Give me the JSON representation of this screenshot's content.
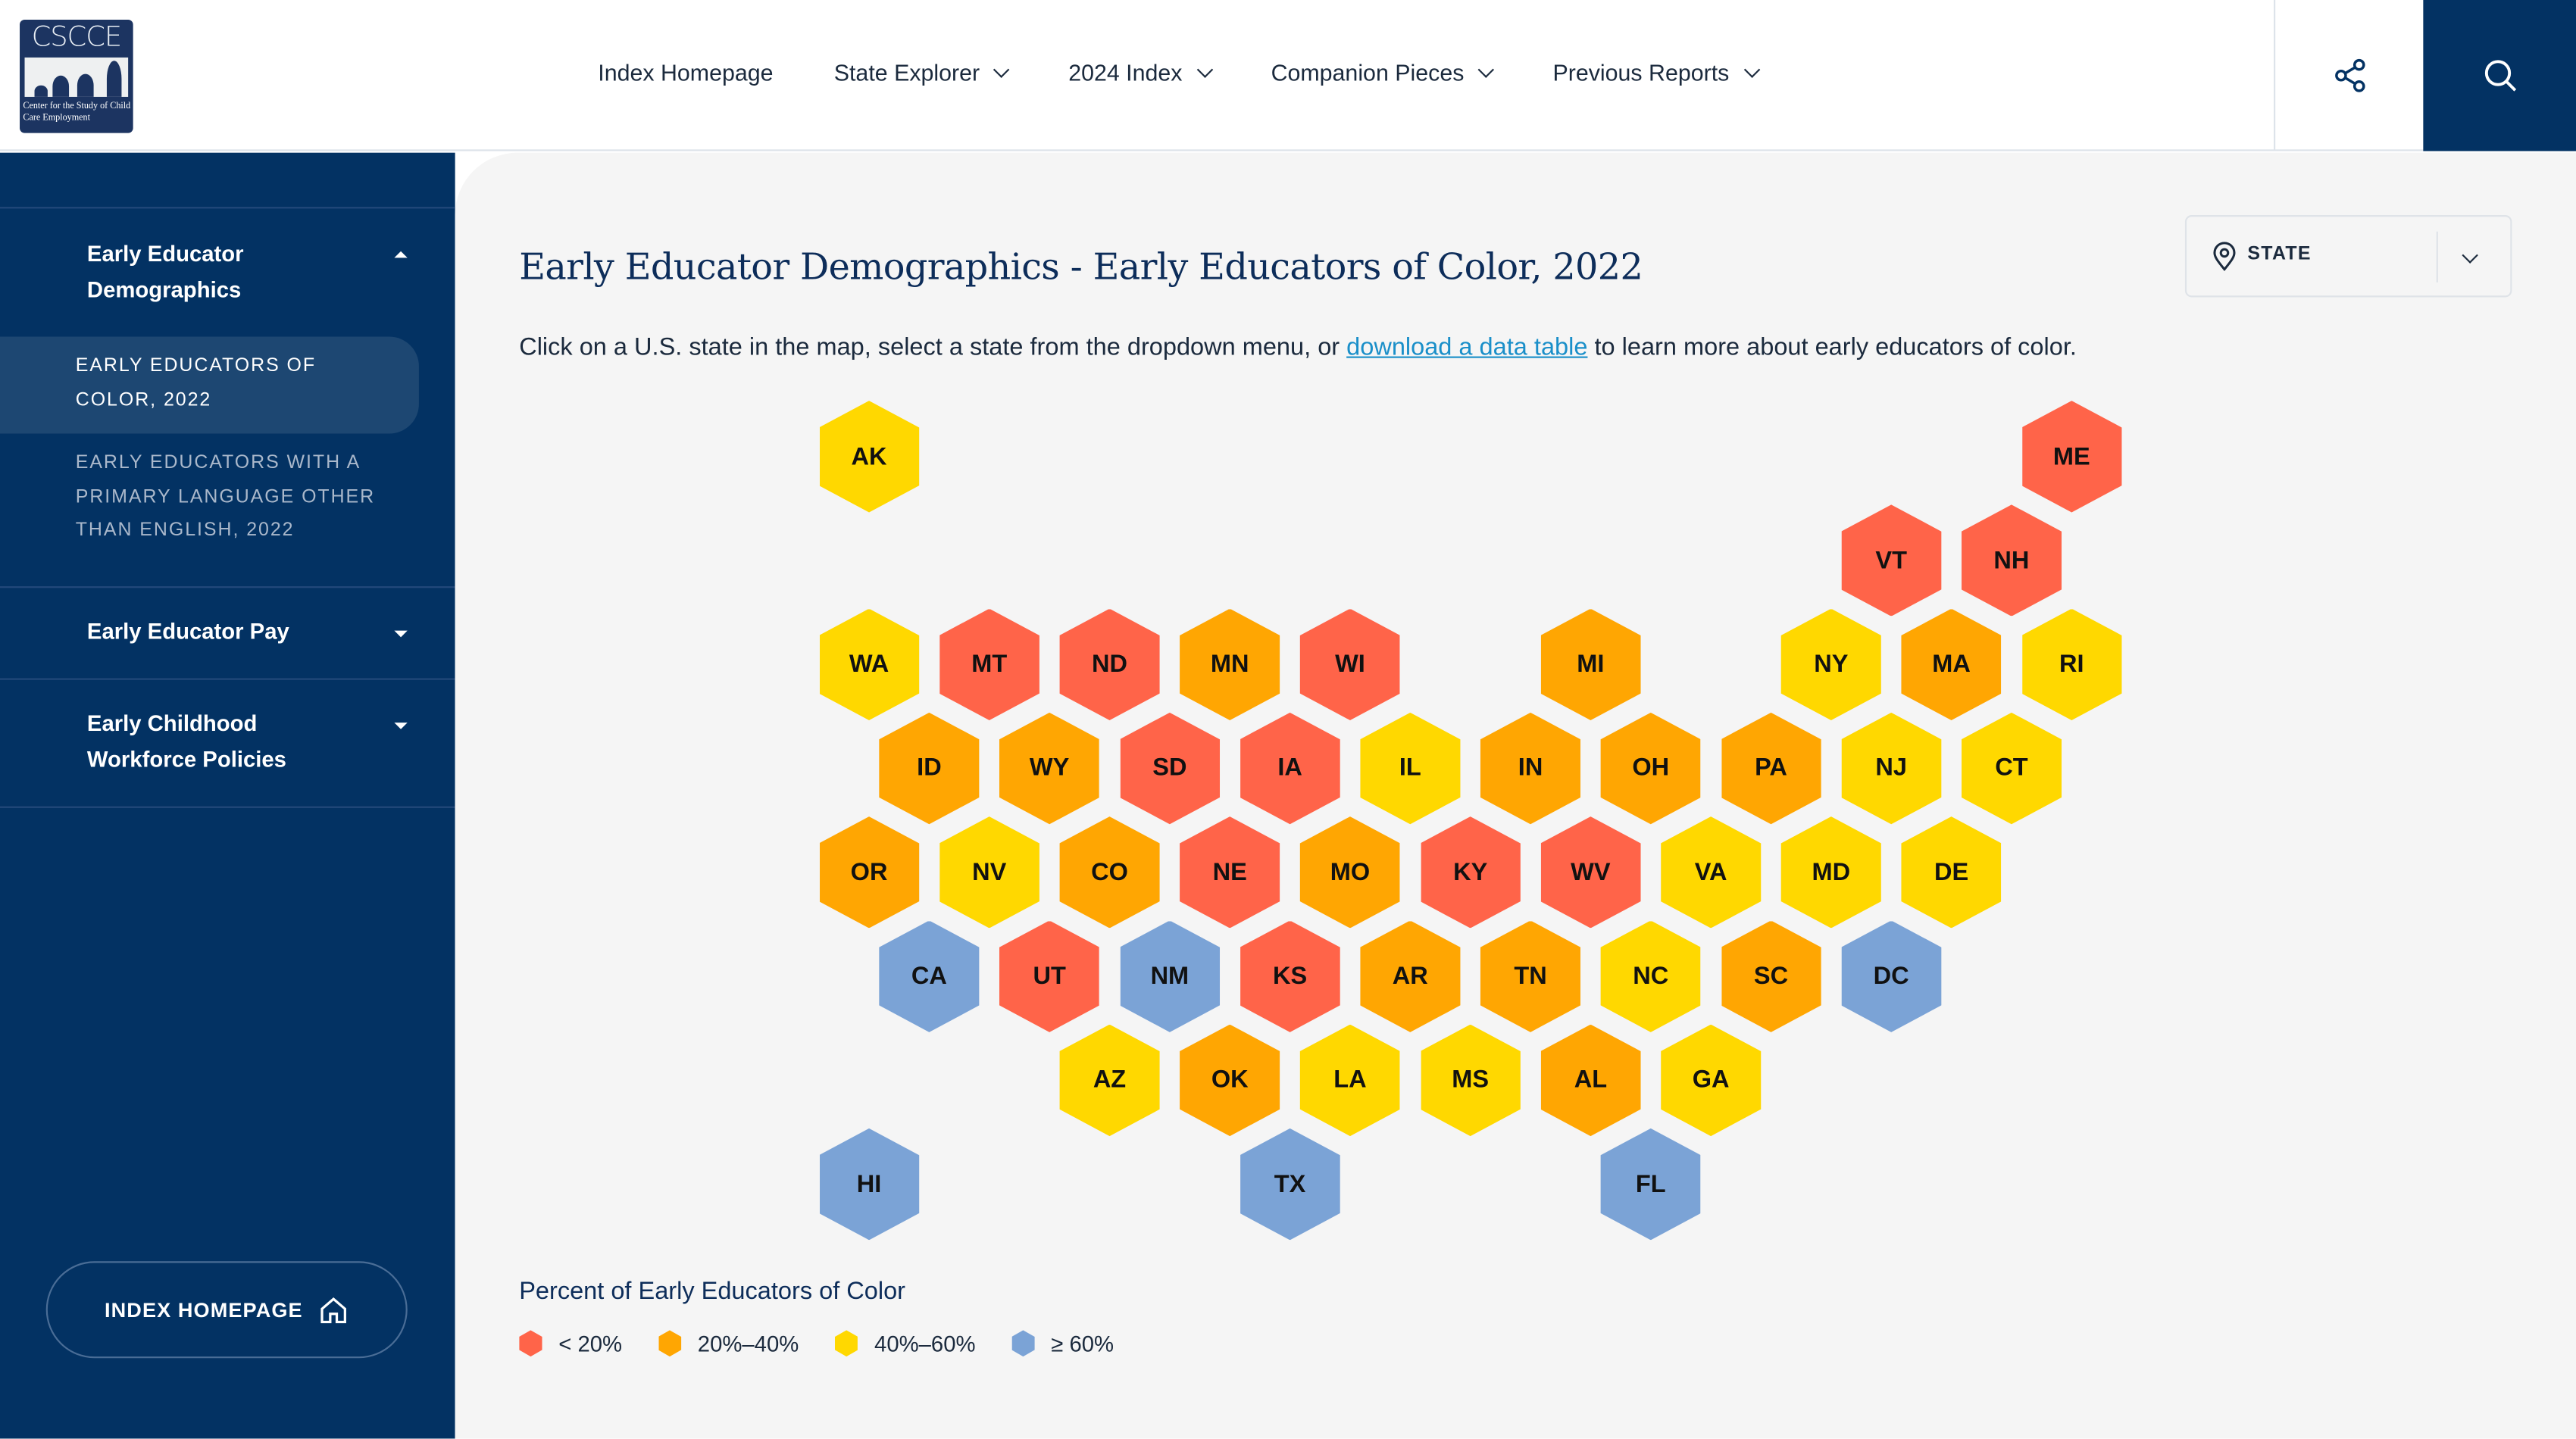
{
  "logo": {
    "abbr": "CSCCE",
    "name": "Center for the Study of Child Care Employment"
  },
  "nav": [
    {
      "label": "Index Homepage",
      "dropdown": false
    },
    {
      "label": "State Explorer",
      "dropdown": true
    },
    {
      "label": "2024 Index",
      "dropdown": true
    },
    {
      "label": "Companion Pieces",
      "dropdown": true
    },
    {
      "label": "Previous Reports",
      "dropdown": true
    }
  ],
  "sidebar": {
    "sections": [
      {
        "label": "Early Educator Demographics",
        "expanded": true
      },
      {
        "label": "Early Educator Pay",
        "expanded": false
      },
      {
        "label": "Early Childhood Workforce Policies",
        "expanded": false
      }
    ],
    "subitems": [
      {
        "label": "EARLY EDUCATORS OF COLOR, 2022",
        "active": true
      },
      {
        "label": "EARLY EDUCATORS WITH A PRIMARY LANGUAGE OTHER THAN ENGLISH, 2022",
        "active": false
      }
    ],
    "index_button": "INDEX HOMEPAGE"
  },
  "main": {
    "title": "Early Educator Demographics - Early Educators of Color, 2022",
    "desc_before": "Click on a U.S. state in the map, select a state from the dropdown menu, or ",
    "desc_link": "download a data table",
    "desc_after": " to learn more about early educators of color.",
    "dropdown_label": "STATE"
  },
  "colors": {
    "lt20": "#ff6449",
    "20to40": "#ffa602",
    "40to60": "#ffd800",
    "gte60": "#7ba3d6",
    "navy": "#033263"
  },
  "legend": {
    "title": "Percent of Early Educators of Color",
    "items": [
      {
        "key": "lt20",
        "label": "< 20%"
      },
      {
        "key": "20to40",
        "label": "20%–40%"
      },
      {
        "key": "40to60",
        "label": "40%–60%"
      },
      {
        "key": "gte60",
        "label": "≥ 60%"
      }
    ]
  },
  "states": [
    {
      "abbr": "AK",
      "cat": "40to60"
    },
    {
      "abbr": "ME",
      "cat": "lt20"
    },
    {
      "abbr": "VT",
      "cat": "lt20"
    },
    {
      "abbr": "NH",
      "cat": "lt20"
    },
    {
      "abbr": "WA",
      "cat": "40to60"
    },
    {
      "abbr": "MT",
      "cat": "lt20"
    },
    {
      "abbr": "ND",
      "cat": "lt20"
    },
    {
      "abbr": "MN",
      "cat": "20to40"
    },
    {
      "abbr": "WI",
      "cat": "lt20"
    },
    {
      "abbr": "MI",
      "cat": "20to40"
    },
    {
      "abbr": "NY",
      "cat": "40to60"
    },
    {
      "abbr": "MA",
      "cat": "20to40"
    },
    {
      "abbr": "RI",
      "cat": "40to60"
    },
    {
      "abbr": "ID",
      "cat": "20to40"
    },
    {
      "abbr": "WY",
      "cat": "20to40"
    },
    {
      "abbr": "SD",
      "cat": "lt20"
    },
    {
      "abbr": "IA",
      "cat": "lt20"
    },
    {
      "abbr": "IL",
      "cat": "40to60"
    },
    {
      "abbr": "IN",
      "cat": "20to40"
    },
    {
      "abbr": "OH",
      "cat": "20to40"
    },
    {
      "abbr": "PA",
      "cat": "20to40"
    },
    {
      "abbr": "NJ",
      "cat": "40to60"
    },
    {
      "abbr": "CT",
      "cat": "40to60"
    },
    {
      "abbr": "OR",
      "cat": "20to40"
    },
    {
      "abbr": "NV",
      "cat": "40to60"
    },
    {
      "abbr": "CO",
      "cat": "20to40"
    },
    {
      "abbr": "NE",
      "cat": "lt20"
    },
    {
      "abbr": "MO",
      "cat": "20to40"
    },
    {
      "abbr": "KY",
      "cat": "lt20"
    },
    {
      "abbr": "WV",
      "cat": "lt20"
    },
    {
      "abbr": "VA",
      "cat": "40to60"
    },
    {
      "abbr": "MD",
      "cat": "40to60"
    },
    {
      "abbr": "DE",
      "cat": "40to60"
    },
    {
      "abbr": "CA",
      "cat": "gte60"
    },
    {
      "abbr": "UT",
      "cat": "lt20"
    },
    {
      "abbr": "NM",
      "cat": "gte60"
    },
    {
      "abbr": "KS",
      "cat": "lt20"
    },
    {
      "abbr": "AR",
      "cat": "20to40"
    },
    {
      "abbr": "TN",
      "cat": "20to40"
    },
    {
      "abbr": "NC",
      "cat": "40to60"
    },
    {
      "abbr": "SC",
      "cat": "20to40"
    },
    {
      "abbr": "DC",
      "cat": "gte60"
    },
    {
      "abbr": "AZ",
      "cat": "40to60"
    },
    {
      "abbr": "OK",
      "cat": "20to40"
    },
    {
      "abbr": "LA",
      "cat": "40to60"
    },
    {
      "abbr": "MS",
      "cat": "40to60"
    },
    {
      "abbr": "AL",
      "cat": "20to40"
    },
    {
      "abbr": "GA",
      "cat": "40to60"
    },
    {
      "abbr": "HI",
      "cat": "gte60"
    },
    {
      "abbr": "TX",
      "cat": "gte60"
    },
    {
      "abbr": "FL",
      "cat": "gte60"
    }
  ]
}
